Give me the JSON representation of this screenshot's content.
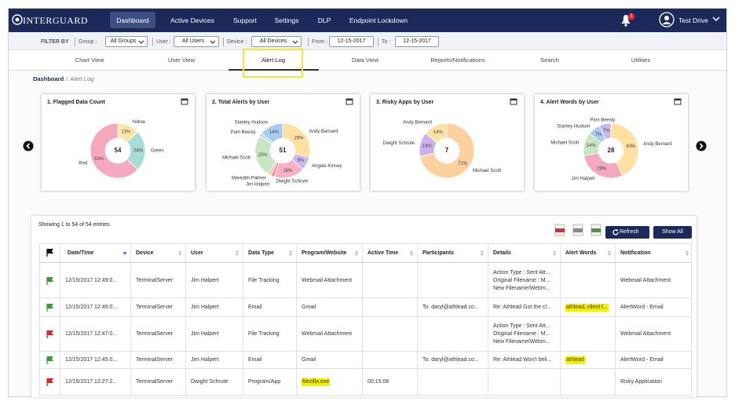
{
  "nav": {
    "logo": "INTERGUARD",
    "items": [
      "Dashboard",
      "Active Devices",
      "Support",
      "Settings",
      "DLP",
      "Endpoint Lockdown"
    ],
    "badge": "1",
    "user": "Test Drive"
  },
  "filters": {
    "label": "FILTER BY",
    "fields": [
      {
        "label": "Group :",
        "value": "All Groups"
      },
      {
        "label": "User :",
        "value": "All Users"
      },
      {
        "label": "Device :",
        "value": "All Devices"
      },
      {
        "label": "From :",
        "value": "12-15-2017"
      },
      {
        "label": "To :",
        "value": "12-15-2017"
      }
    ]
  },
  "tabs": [
    "Chart View",
    "User View",
    "Alert Log",
    "Data View",
    "Reports/Notifications",
    "Search",
    "Utilities"
  ],
  "breadcrumb": {
    "root": "Dashboard",
    "separator": "/",
    "current": "Alert Log"
  },
  "widgets": [
    {
      "title": "1. Flagged Data Count",
      "total": 54,
      "slices": [
        {
          "name": "Yellow",
          "value": 13,
          "label": "13%",
          "color": "#fde6a8"
        },
        {
          "name": "Green",
          "value": 24,
          "label": "24%",
          "color": "#a9dcd6"
        },
        {
          "name": "Red",
          "value": 63,
          "label": "63%",
          "color": "#f6a9be"
        }
      ]
    },
    {
      "title": "2. Total Alerts by User",
      "total": 51,
      "slices": [
        {
          "name": "Andy Bernard",
          "value": 29,
          "label": "29%",
          "color": "#fde0a2"
        },
        {
          "name": "Angela Kinsey",
          "value": 8,
          "label": "8%",
          "color": "#cdb8ee"
        },
        {
          "name": "Dwight Schrute",
          "value": 18,
          "label": "18%",
          "color": "#f7b1c5"
        },
        {
          "name": "Jim Halpert",
          "value": 2,
          "label": null,
          "color": "#f08a9a"
        },
        {
          "name": "Meredith Palmer",
          "value": 2,
          "label": null,
          "color": "#f9c9a8"
        },
        {
          "name": "Michael Scott",
          "value": 25,
          "label": "25%",
          "color": "#c7e6c1"
        },
        {
          "name": "Pam Beesly",
          "value": 2,
          "label": null,
          "color": "#b9d7f3"
        },
        {
          "name": "Stanley Hudson",
          "value": 14,
          "label": "14%",
          "color": "#a7cdf2"
        }
      ]
    },
    {
      "title": "3. Risky Apps by User",
      "total": 7,
      "slices": [
        {
          "name": "Michael Scott",
          "value": 71,
          "label": "71%",
          "color": "#fdd0a0"
        },
        {
          "name": "Dwight Schrute",
          "value": 14,
          "label": "14%",
          "color": "#cbb1ee"
        },
        {
          "name": "Andy Bernard",
          "value": 14,
          "label": "14%",
          "color": "#fde0a8"
        }
      ]
    },
    {
      "title": "4. Alert Words by User",
      "total": 28,
      "slices": [
        {
          "name": "Andy Bernard",
          "value": 43,
          "label": "43%",
          "color": "#fde0a2"
        },
        {
          "name": "Jim Halpert",
          "value": 29,
          "label": "29%",
          "color": "#f6a9be"
        },
        {
          "name": "Michael Scott",
          "value": 14,
          "label": "14%",
          "color": "#c7e6c1"
        },
        {
          "name": "Stanley Hudson",
          "value": 7,
          "label": "7%",
          "color": "#a9cdf2"
        },
        {
          "name": "Pam Beesly",
          "value": 7,
          "label": "7%",
          "color": "#cdb8ee"
        }
      ]
    }
  ],
  "table": {
    "summary": "Showing 1 to 54 of 54 entries",
    "refresh": "Refresh",
    "show_all": "Show All",
    "columns": [
      "Date/Time",
      "Device",
      "User",
      "Data Type",
      "Program/Website",
      "Active Time",
      "Participants",
      "Details",
      "Alert Words",
      "Notification"
    ],
    "rows": [
      {
        "flag": "#3a9a3a",
        "highlight": [],
        "cells": [
          "12/15/2017 12:49:0...",
          "TerminalServer",
          "Jim Halpert",
          "File Tracking",
          "Webmail Attachment",
          null,
          null,
          [
            "Action Type : Sent Att...",
            "Original Filename : M...",
            "New Filename/Webm..."
          ],
          null,
          "Webmail Attachment"
        ]
      },
      {
        "flag": "#3a9a3a",
        "highlight": [
          8
        ],
        "cells": [
          "12/15/2017 12:49:0...",
          "TerminalServer",
          "Jim Halpert",
          "Email",
          "Gmail",
          null,
          "To: daryl@athlead.co...",
          "Re: Athlead Got the cl...",
          "athlead, client l...",
          "AlertWord - Email"
        ]
      },
      {
        "flag": "#e0262b",
        "highlight": [],
        "cells": [
          "12/15/2017 12:47:0...",
          "TerminalServer",
          "Jim Halpert",
          "File Tracking",
          "Webmail Attachment",
          null,
          null,
          [
            "Action Type : Sent Att...",
            "Original Filename : M...",
            "New Filename/Webm..."
          ],
          null,
          "Webmail Attachment"
        ]
      },
      {
        "flag": "#3a9a3a",
        "highlight": [
          8
        ],
        "cells": [
          "12/15/2017 12:45:0...",
          "TerminalServer",
          "Jim Halpert",
          "Email",
          "Gmail",
          null,
          "To: daryl@athlead.co...",
          "Re: Athlead Won't beli...",
          "athlead",
          "AlertWord - Email"
        ]
      },
      {
        "flag": "#e0262b",
        "highlight": [
          4
        ],
        "cells": [
          "12/15/2017 12:27:2...",
          "TerminalServer",
          "Dwight Schrute",
          "Program/App",
          "filezilla.exe",
          "00:15:06",
          null,
          null,
          null,
          "Risky Application"
        ]
      }
    ]
  }
}
